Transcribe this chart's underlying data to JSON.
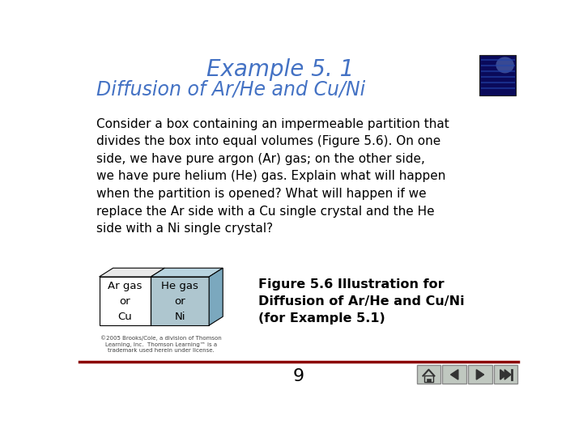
{
  "title": "Example 5. 1",
  "subtitle": "Diffusion of Ar/He and Cu/Ni",
  "title_color": "#4472C4",
  "subtitle_color": "#4472C4",
  "body_text": "Consider a box containing an impermeable partition that\ndivides the box into equal volumes (Figure 5.6). On one\nside, we have pure argon (Ar) gas; on the other side,\nwe have pure helium (He) gas. Explain what will happen\nwhen the partition is opened? What will happen if we\nreplace the Ar side with a Cu single crystal and the He\nside with a Ni single crystal?",
  "body_color": "#000000",
  "bg_color": "#ffffff",
  "page_number": "9",
  "figure_caption": "Figure 5.6 Illustration for\nDiffusion of Ar/He and Cu/Ni\n(for Example 5.1)",
  "copyright_text": "©2005 Brooks/Cole, a division of Thomson\nLearning, Inc.  Thomson Learning™ is a\ntrademark used herein under license.",
  "left_label": "Ar gas\nor\nCu",
  "right_label": "He gas\nor\nNi",
  "separator_line_color": "#8B0000",
  "box_left_color": "#ffffff",
  "box_right_color": "#aec6cf",
  "box_right_top_color": "#b8d4e0",
  "box_right_side_color": "#7ba8be",
  "box_top_left_color": "#e8e8e8",
  "box_border_color": "#000000",
  "nav_btn_color": "#c0c8c0",
  "nav_btn_edge": "#888888",
  "nav_icon_color": "#333333"
}
